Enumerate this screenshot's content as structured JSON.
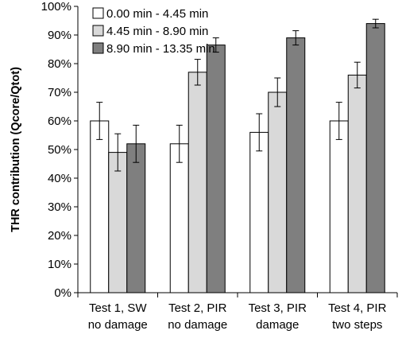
{
  "chart_data": {
    "type": "bar",
    "categories": [
      [
        "Test 1, SW",
        "no damage"
      ],
      [
        "Test 2, PIR",
        "no damage"
      ],
      [
        "Test 3, PIR",
        "damage"
      ],
      [
        "Test 4, PIR",
        "two steps"
      ]
    ],
    "series": [
      {
        "name": "0.00 min - 4.45 min",
        "color": "#ffffff",
        "values": [
          60,
          52,
          56,
          60
        ],
        "errors": [
          6.5,
          6.5,
          6.5,
          6.5
        ]
      },
      {
        "name": "4.45 min - 8.90 min",
        "color": "#d9d9d9",
        "values": [
          49,
          77,
          70,
          76
        ],
        "errors": [
          6.5,
          4.5,
          5.0,
          4.5
        ]
      },
      {
        "name": "8.90 min - 13.35 min",
        "color": "#7f7f7f",
        "values": [
          52,
          86.5,
          89,
          94
        ],
        "errors": [
          6.5,
          2.5,
          2.5,
          1.5
        ]
      }
    ],
    "ylabel": "THR contribution (Qcore/Qtot)",
    "ylim": [
      0,
      100
    ],
    "yticks": [
      "0%",
      "10%",
      "20%",
      "30%",
      "40%",
      "50%",
      "60%",
      "70%",
      "80%",
      "90%",
      "100%"
    ],
    "legend_position": "top-left",
    "grid": false
  }
}
